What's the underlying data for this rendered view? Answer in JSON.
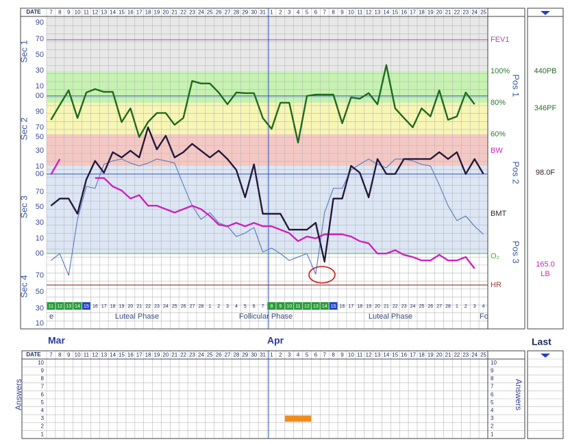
{
  "header": {
    "date_label": "DATE",
    "dates": [
      7,
      8,
      9,
      10,
      11,
      12,
      13,
      14,
      15,
      16,
      17,
      18,
      19,
      20,
      21,
      22,
      23,
      24,
      25,
      26,
      27,
      28,
      29,
      30,
      31,
      1,
      2,
      3,
      4,
      5,
      6,
      7,
      8,
      9,
      10,
      11,
      12,
      13,
      14,
      15,
      16,
      17,
      18,
      19,
      20,
      21,
      22,
      23,
      24,
      25
    ],
    "months": [
      "Mar",
      "Apr"
    ],
    "last_label": "Last"
  },
  "chart_data": {
    "type": "line",
    "ylim": [
      0,
      100
    ],
    "y_axis_labels": [
      "90",
      "70",
      "50",
      "30",
      "10",
      "00",
      "90",
      "70",
      "50",
      "30",
      "10",
      "00",
      "70",
      "50",
      "30",
      "10",
      "00",
      "70",
      "50",
      "30",
      "10"
    ],
    "section_labels": [
      "Sec 1",
      "Sec 2",
      "Sec 3",
      "Sec 4"
    ],
    "position_labels": [
      "Pos 1",
      "Pos 2",
      "Pos 3"
    ],
    "reference_labels": [
      {
        "text": "FEV1",
        "color": "#a050a0"
      },
      {
        "text": "100%",
        "color": "#2a7a2a"
      },
      {
        "text": "80%",
        "color": "#2a7a2a"
      },
      {
        "text": "60%",
        "color": "#2a7a2a"
      },
      {
        "text": "BW",
        "color": "#d020c0"
      },
      {
        "text": "BMT",
        "color": "#302030"
      },
      {
        "text": "O₂",
        "color": "#30b030"
      },
      {
        "text": "HR",
        "color": "#a03838"
      }
    ],
    "series": [
      {
        "color": "#1e6a1e",
        "values": [
          67.2,
          72,
          76.7,
          67.8,
          76.0,
          77.1,
          76.2,
          76.2,
          66.5,
          70.9,
          61.7,
          66.5,
          69.4,
          69.4,
          65.6,
          67.8,
          79.7,
          78.9,
          78.9,
          76.0,
          72.2,
          76.0,
          75.8,
          75.8,
          67.8,
          64.3,
          72.7,
          72.7,
          59.9,
          74.9,
          75.3,
          75.3,
          75.3,
          66.1,
          74.4,
          74.0,
          75.8,
          72.2,
          84.8,
          70.9,
          67.8,
          64.8,
          70.9,
          68.3,
          76.7,
          67.2,
          68.3,
          76.0,
          72.2,
          null
        ]
      },
      {
        "color": "#6080c0",
        "values": [
          22.0,
          24.2,
          17.2,
          35.2,
          45.8,
          45.2,
          52.9,
          54.0,
          54.6,
          53.3,
          52.4,
          53.3,
          54.6,
          54.0,
          53.3,
          46.3,
          39.6,
          35.2,
          37.4,
          34.1,
          33.0,
          29.7,
          30.8,
          32.6,
          24.7,
          26.0,
          24.2,
          22.0,
          23.1,
          24.2,
          17.6,
          37.4,
          45.2,
          45.2,
          51.1,
          52.9,
          54.6,
          52.9,
          51.8,
          54.6,
          54.6,
          54.0,
          52.9,
          52.4,
          46.3,
          39.6,
          34.8,
          36.3,
          33.0,
          30.4
        ]
      },
      {
        "color": "#d020c0",
        "values": [
          49.6,
          54.6,
          null,
          null,
          null,
          48.5,
          48.5,
          45.8,
          44.5,
          41.9,
          43.0,
          39.6,
          39.6,
          38.5,
          37.4,
          38.5,
          39.6,
          38.5,
          36.3,
          33.5,
          33.0,
          34.1,
          33.0,
          34.1,
          33.0,
          33.0,
          31.9,
          30.8,
          28.2,
          29.7,
          29.1,
          30.4,
          30.4,
          30.4,
          29.7,
          28.2,
          27.5,
          24.2,
          24.2,
          25.3,
          23.8,
          23.1,
          22.0,
          22.0,
          23.8,
          22.0,
          22.0,
          23.1,
          19.4,
          null
        ]
      },
      {
        "color": "#24183c",
        "values": [
          39.6,
          41.9,
          41.9,
          37.0,
          48.0,
          54.0,
          50.2,
          56.8,
          55.1,
          57.3,
          55.1,
          64.8,
          57.7,
          62.1,
          55.1,
          56.8,
          59.5,
          57.3,
          55.1,
          57.3,
          54.6,
          51.1,
          42.3,
          52.9,
          37.0,
          37.0,
          37.0,
          31.9,
          31.9,
          31.9,
          34.1,
          21.6,
          41.9,
          41.9,
          52.4,
          50.2,
          42.3,
          54.6,
          49.8,
          49.8,
          54.6,
          54.6,
          54.6,
          54.6,
          56.8,
          54.6,
          56.8,
          49.8,
          54.6,
          49.8
        ]
      }
    ],
    "cycle_days": [
      11,
      12,
      13,
      14,
      15,
      16,
      17,
      18,
      19,
      20,
      21,
      22,
      23,
      24,
      25,
      26,
      27,
      28,
      1,
      2,
      3,
      4,
      5,
      6,
      7,
      8,
      9,
      10,
      11,
      12,
      13,
      14,
      15,
      16,
      17,
      18,
      19,
      20,
      21,
      22,
      23,
      24,
      25,
      26,
      27,
      28,
      1,
      2,
      3,
      4
    ],
    "cycle_status": [
      "fertile",
      "fertile",
      "fertile",
      "fertile",
      "peak",
      null,
      null,
      null,
      null,
      null,
      null,
      null,
      null,
      null,
      null,
      null,
      null,
      null,
      null,
      null,
      null,
      null,
      null,
      null,
      null,
      "fertile",
      "fertile",
      "fertile",
      "fertile",
      "fertile",
      "fertile",
      "fertile",
      "peak",
      null,
      null,
      null,
      null,
      null,
      null,
      null,
      null,
      null,
      null,
      null,
      null,
      null,
      null,
      null,
      null,
      null
    ],
    "status_colors": {
      "fertile": "#2a9d3a",
      "peak": "#2448c8"
    },
    "phase_labels": [
      "e",
      "Luteal Phase",
      "Follicular Phase",
      "Luteal Phase",
      "Fo"
    ]
  },
  "right_panel": {
    "labels": [
      {
        "text": "440PB",
        "color": "#2a6a2a"
      },
      {
        "text": "346PF",
        "color": "#2a6a2a"
      },
      {
        "text": "98.0F",
        "color": "#302030"
      },
      {
        "text": "165.0",
        "color": "#d020c0"
      },
      {
        "text": "LB",
        "color": "#d020c0"
      }
    ]
  },
  "answers": {
    "axis_title": "Answers",
    "row_labels": [
      10,
      9,
      8,
      7,
      6,
      5,
      4,
      3,
      2,
      1
    ],
    "color": "#f08c1e",
    "values": [
      null,
      null,
      null,
      null,
      null,
      null,
      null,
      null,
      null,
      null,
      null,
      null,
      null,
      null,
      null,
      null,
      null,
      null,
      null,
      null,
      null,
      null,
      null,
      null,
      null,
      null,
      null,
      3,
      3,
      3,
      null,
      null,
      null,
      null,
      null,
      null,
      null,
      null,
      null,
      null,
      null,
      null,
      null,
      null,
      null,
      null,
      null,
      null,
      null,
      null
    ]
  }
}
